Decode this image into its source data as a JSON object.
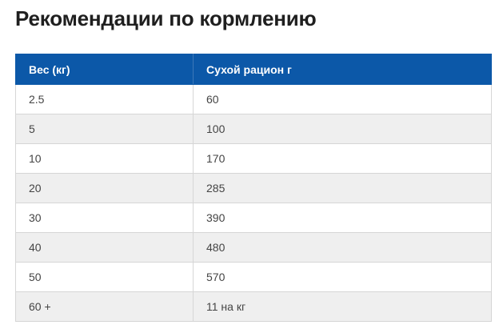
{
  "title": "Рекомендации по кормлению",
  "colors": {
    "header_bg": "#0c58a8",
    "header_text": "#ffffff",
    "row_alt_bg": "#efefef",
    "border": "#d6d6d6"
  },
  "table": {
    "headers": [
      "Вес (кг)",
      "Сухой рацион г"
    ],
    "rows": [
      [
        "2.5",
        "60"
      ],
      [
        "5",
        "100"
      ],
      [
        "10",
        "170"
      ],
      [
        "20",
        "285"
      ],
      [
        "30",
        "390"
      ],
      [
        "40",
        "480"
      ],
      [
        "50",
        "570"
      ],
      [
        "60 +",
        "11 на кг"
      ]
    ]
  }
}
